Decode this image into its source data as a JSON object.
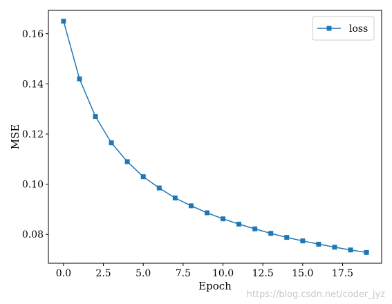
{
  "chart_data": {
    "type": "line",
    "xlabel": "Epoch",
    "ylabel": "MSE",
    "xlim": [
      -0.95,
      19.95
    ],
    "ylim": [
      0.0685,
      0.1693
    ],
    "x_ticks": [
      0.0,
      2.5,
      5.0,
      7.5,
      10.0,
      12.5,
      15.0,
      17.5
    ],
    "x_tick_labels": [
      "0.0",
      "2.5",
      "5.0",
      "7.5",
      "10.0",
      "12.5",
      "15.0",
      "17.5"
    ],
    "y_ticks": [
      0.08,
      0.1,
      0.12,
      0.14,
      0.16
    ],
    "y_tick_labels": [
      "0.08",
      "0.10",
      "0.12",
      "0.14",
      "0.16"
    ],
    "grid": false,
    "legend_position": "top-right",
    "series": [
      {
        "name": "loss",
        "color": "#1f77b4",
        "marker": "square",
        "x": [
          0,
          1,
          2,
          3,
          4,
          5,
          6,
          7,
          8,
          9,
          10,
          11,
          12,
          13,
          14,
          15,
          16,
          17,
          18,
          19
        ],
        "values": [
          0.165,
          0.142,
          0.127,
          0.1165,
          0.109,
          0.103,
          0.0985,
          0.0945,
          0.0914,
          0.0886,
          0.0862,
          0.0841,
          0.0822,
          0.0804,
          0.0788,
          0.0774,
          0.0761,
          0.0749,
          0.0738,
          0.0728
        ]
      }
    ]
  },
  "watermark": "https://blog.csdn.net/coder_jyz"
}
